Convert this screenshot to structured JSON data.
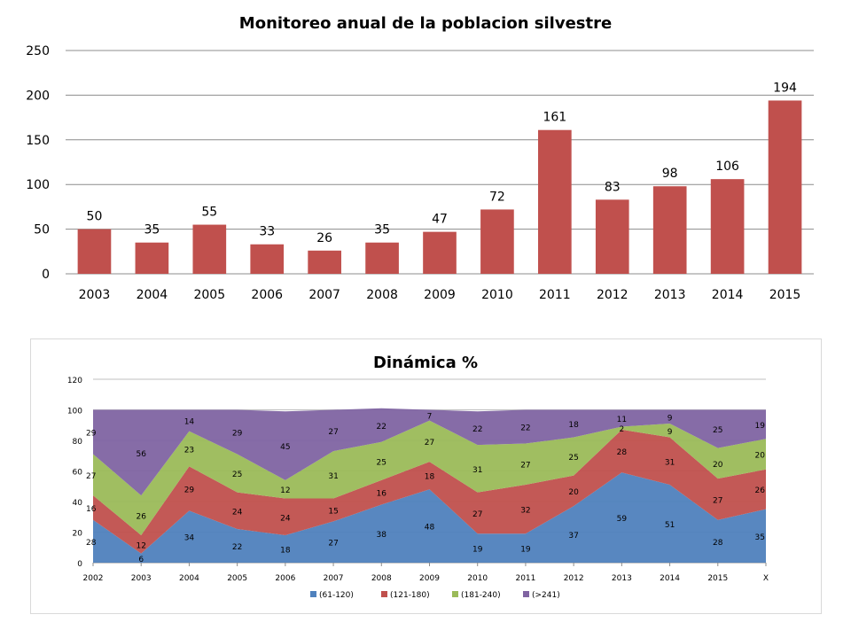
{
  "chart_data": [
    {
      "type": "bar",
      "title": "Monitoreo anual de la poblacion silvestre",
      "categories": [
        "2003",
        "2004",
        "2005",
        "2006",
        "2007",
        "2008",
        "2009",
        "2010",
        "2011",
        "2012",
        "2013",
        "2014",
        "2015"
      ],
      "values": [
        50,
        35,
        55,
        33,
        26,
        35,
        47,
        72,
        161,
        83,
        98,
        106,
        194
      ],
      "ylim": [
        0,
        250
      ],
      "yticks": [
        0,
        50,
        100,
        150,
        200,
        250
      ],
      "grid": true,
      "bar_color": "#c0504d"
    },
    {
      "type": "area",
      "stacked": true,
      "title": "Dinámica %",
      "x": [
        "2002",
        "2003",
        "2004",
        "2005",
        "2006",
        "2007",
        "2008",
        "2009",
        "2010",
        "2011",
        "2012",
        "2013",
        "2014",
        "2015",
        "X"
      ],
      "ylim": [
        0,
        120
      ],
      "yticks": [
        0,
        20,
        40,
        60,
        80,
        100,
        120
      ],
      "grid": true,
      "legend_position": "bottom",
      "series": [
        {
          "name": "(61-120)",
          "color": "#4f81bd",
          "values": [
            28,
            6,
            34,
            22,
            18,
            27,
            38,
            48,
            19,
            19,
            37,
            59,
            51,
            28,
            35
          ]
        },
        {
          "name": "(121-180)",
          "color": "#c0504d",
          "values": [
            16,
            12,
            29,
            24,
            24,
            15,
            16,
            18,
            27,
            32,
            20,
            28,
            31,
            27,
            26
          ]
        },
        {
          "name": "(181-240)",
          "color": "#9bbb59",
          "values": [
            27,
            26,
            23,
            25,
            12,
            31,
            25,
            27,
            31,
            27,
            25,
            2,
            9,
            20,
            20
          ]
        },
        {
          "name": "(>241)",
          "color": "#8064a2",
          "values": [
            29,
            56,
            14,
            29,
            45,
            27,
            22,
            7,
            22,
            22,
            18,
            11,
            9,
            25,
            19
          ]
        }
      ]
    }
  ]
}
